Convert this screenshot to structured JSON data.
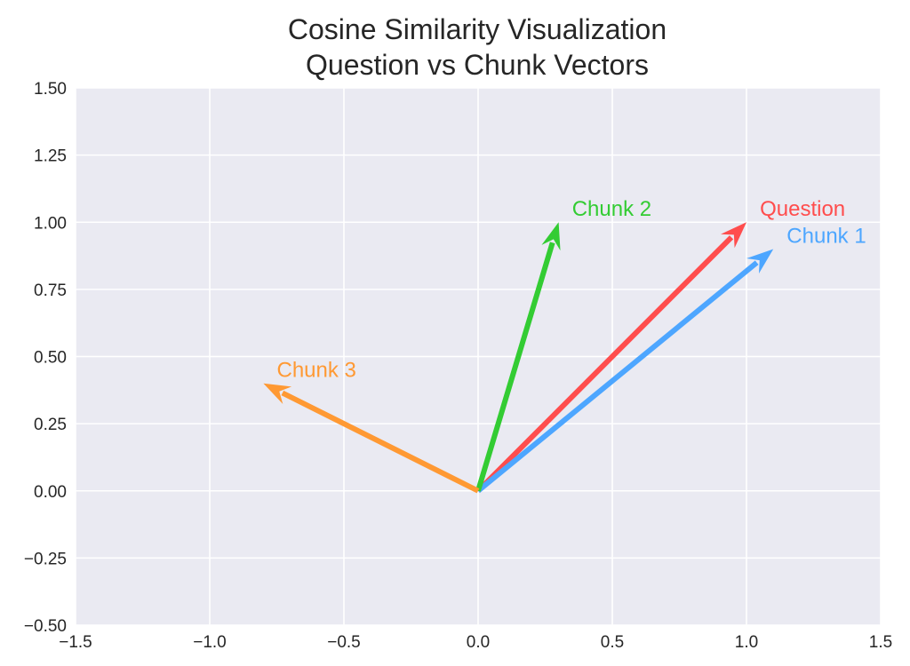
{
  "chart_data": {
    "type": "quiver",
    "title": "Cosine Similarity Visualization\nQuestion vs Chunk Vectors",
    "title_lines": [
      "Cosine Similarity Visualization",
      "Question vs Chunk Vectors"
    ],
    "xlabel": "",
    "ylabel": "",
    "xlim": [
      -1.5,
      1.5
    ],
    "ylim": [
      -0.5,
      1.5
    ],
    "xticks": [
      "−1.5",
      "−1.0",
      "−0.5",
      "0.0",
      "0.5",
      "1.0",
      "1.5"
    ],
    "xtick_values": [
      -1.5,
      -1.0,
      -0.5,
      0.0,
      0.5,
      1.0,
      1.5
    ],
    "yticks": [
      "−0.50",
      "−0.25",
      "0.00",
      "0.25",
      "0.50",
      "0.75",
      "1.00",
      "1.25",
      "1.50"
    ],
    "ytick_values": [
      -0.5,
      -0.25,
      0.0,
      0.25,
      0.5,
      0.75,
      1.0,
      1.25,
      1.5
    ],
    "grid": true,
    "background": "#eaeaf2",
    "vectors": [
      {
        "label": "Question",
        "origin": [
          0,
          0
        ],
        "end": [
          1.0,
          1.0
        ],
        "color": "#ff4d4d",
        "label_pos": [
          1.05,
          1.05
        ]
      },
      {
        "label": "Chunk 1",
        "origin": [
          0,
          0
        ],
        "end": [
          1.1,
          0.9
        ],
        "color": "#4da6ff",
        "label_pos": [
          1.15,
          0.95
        ]
      },
      {
        "label": "Chunk 2",
        "origin": [
          0,
          0
        ],
        "end": [
          0.3,
          1.0
        ],
        "color": "#33cc33",
        "label_pos": [
          0.35,
          1.05
        ]
      },
      {
        "label": "Chunk 3",
        "origin": [
          0,
          0
        ],
        "end": [
          -0.8,
          0.4
        ],
        "color": "#ff9933",
        "label_pos": [
          -0.75,
          0.45
        ]
      }
    ]
  }
}
